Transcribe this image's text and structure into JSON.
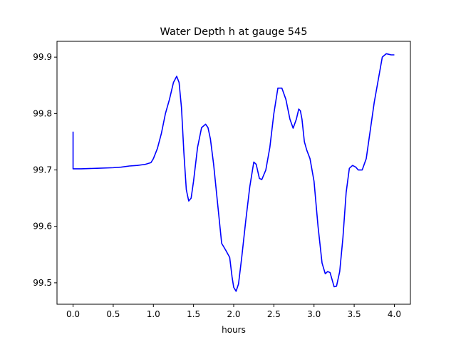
{
  "chart_data": {
    "type": "line",
    "title": "Water Depth h at gauge 545",
    "xlabel": "hours",
    "ylabel": "",
    "xlim": [
      -0.2,
      4.2
    ],
    "ylim": [
      99.462,
      99.928
    ],
    "xticks": [
      0.0,
      0.5,
      1.0,
      1.5,
      2.0,
      2.5,
      3.0,
      3.5,
      4.0
    ],
    "xtick_labels": [
      "0.0",
      "0.5",
      "1.0",
      "1.5",
      "2.0",
      "2.5",
      "3.0",
      "3.5",
      "4.0"
    ],
    "yticks": [
      99.5,
      99.6,
      99.7,
      99.8,
      99.9
    ],
    "ytick_labels": [
      "99.5",
      "99.6",
      "99.7",
      "99.8",
      "99.9"
    ],
    "grid": false,
    "series": [
      {
        "color": "#0000ff",
        "x": [
          0.0,
          0.0,
          0.1,
          0.3,
          0.5,
          0.6,
          0.7,
          0.8,
          0.9,
          0.97,
          1.0,
          1.05,
          1.1,
          1.15,
          1.2,
          1.25,
          1.29,
          1.32,
          1.35,
          1.38,
          1.41,
          1.44,
          1.47,
          1.5,
          1.55,
          1.6,
          1.65,
          1.68,
          1.71,
          1.75,
          1.8,
          1.85,
          1.9,
          1.95,
          1.98,
          2.0,
          2.03,
          2.06,
          2.1,
          2.15,
          2.2,
          2.25,
          2.28,
          2.32,
          2.35,
          2.4,
          2.45,
          2.5,
          2.55,
          2.6,
          2.65,
          2.7,
          2.74,
          2.78,
          2.81,
          2.83,
          2.85,
          2.88,
          2.91,
          2.95,
          3.0,
          3.05,
          3.1,
          3.14,
          3.17,
          3.2,
          3.22,
          3.25,
          3.28,
          3.32,
          3.36,
          3.4,
          3.44,
          3.48,
          3.52,
          3.55,
          3.6,
          3.65,
          3.7,
          3.75,
          3.8,
          3.85,
          3.9,
          3.93,
          3.96,
          4.0
        ],
        "y": [
          99.768,
          99.702,
          99.702,
          99.703,
          99.704,
          99.705,
          99.707,
          99.708,
          99.71,
          99.713,
          99.72,
          99.738,
          99.765,
          99.8,
          99.825,
          99.855,
          99.866,
          99.855,
          99.81,
          99.73,
          99.665,
          99.645,
          99.65,
          99.68,
          99.74,
          99.775,
          99.781,
          99.775,
          99.755,
          99.71,
          99.64,
          99.57,
          99.558,
          99.545,
          99.51,
          99.492,
          99.485,
          99.498,
          99.545,
          99.61,
          99.67,
          99.714,
          99.71,
          99.685,
          99.683,
          99.7,
          99.74,
          99.8,
          99.845,
          99.845,
          99.825,
          99.79,
          99.774,
          99.79,
          99.808,
          99.805,
          99.79,
          99.75,
          99.735,
          99.72,
          99.68,
          99.6,
          99.535,
          99.516,
          99.52,
          99.518,
          99.508,
          99.493,
          99.494,
          99.52,
          99.58,
          99.66,
          99.703,
          99.708,
          99.705,
          99.7,
          99.7,
          99.72,
          99.77,
          99.82,
          99.86,
          99.9,
          99.906,
          99.905,
          99.904,
          99.904
        ]
      }
    ]
  }
}
